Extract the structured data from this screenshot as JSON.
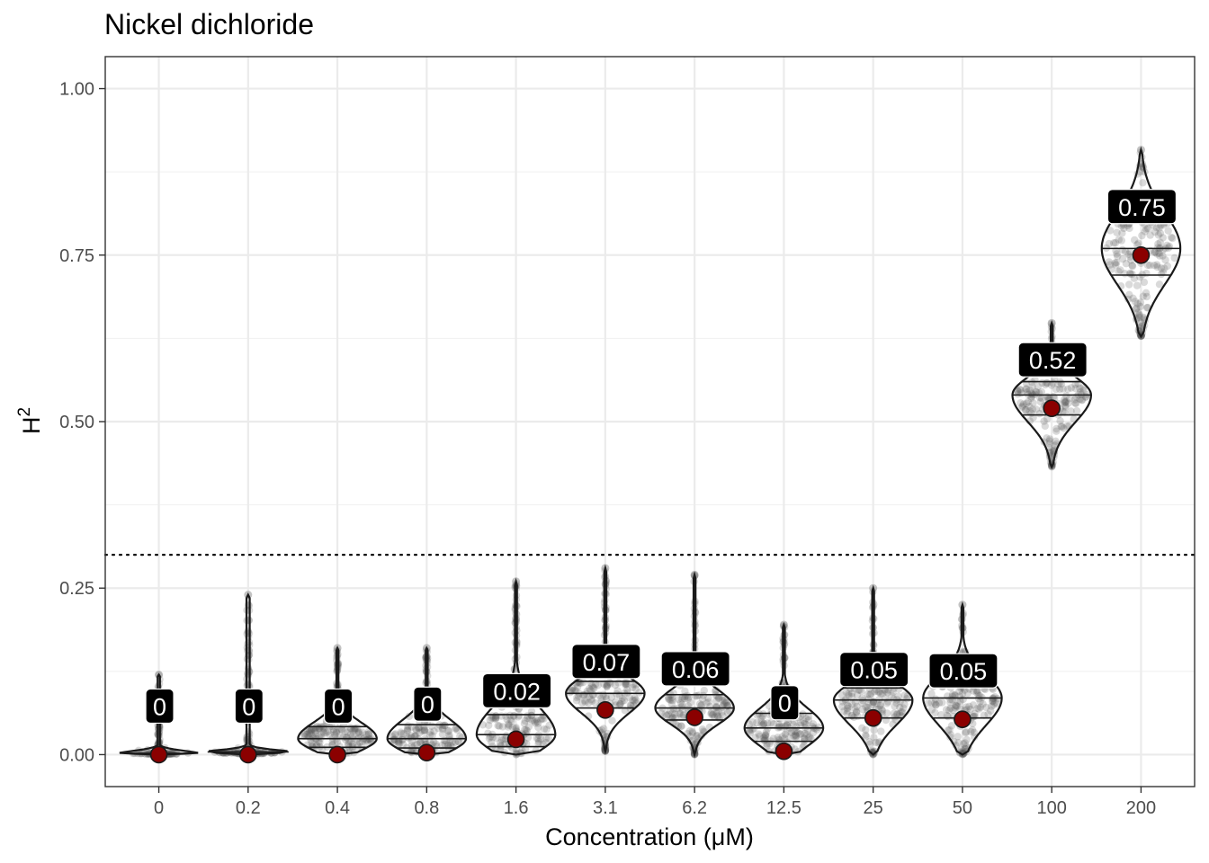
{
  "chart_data": {
    "type": "violin",
    "title": "Nickel dichloride",
    "xlabel": "Concentration (μM)",
    "ylabel": "H",
    "ylabel_superscript": "2",
    "categories": [
      "0",
      "0.2",
      "0.4",
      "0.8",
      "1.6",
      "3.1",
      "6.2",
      "12.5",
      "25",
      "50",
      "100",
      "200"
    ],
    "ylim": [
      -0.048,
      1.048
    ],
    "yticks": [
      0.0,
      0.25,
      0.5,
      0.75,
      1.0
    ],
    "ytick_labels": [
      "0.00",
      "0.25",
      "0.50",
      "0.75",
      "1.00"
    ],
    "threshold": 0.3,
    "grid": true,
    "estimates": [
      0.0,
      0.0,
      0.0,
      0.003,
      0.023,
      0.067,
      0.056,
      0.005,
      0.055,
      0.053,
      0.52,
      0.75
    ],
    "estimate_labels": [
      "0",
      "0",
      "0",
      "0",
      "0.02",
      "0.07",
      "0.06",
      "0",
      "0.05",
      "0.05",
      "0.52",
      "0.75"
    ],
    "distributions": [
      {
        "category": "0",
        "min": 0.0,
        "max": 0.12,
        "q25": 0.0,
        "median": 0.0,
        "q75": 0.002
      },
      {
        "category": "0.2",
        "min": 0.0,
        "max": 0.24,
        "q25": 0.0,
        "median": 0.0,
        "q75": 0.004
      },
      {
        "category": "0.4",
        "min": 0.0,
        "max": 0.16,
        "q25": 0.011,
        "median": 0.024,
        "q75": 0.042
      },
      {
        "category": "0.8",
        "min": 0.0,
        "max": 0.16,
        "q25": 0.01,
        "median": 0.024,
        "q75": 0.045
      },
      {
        "category": "1.6",
        "min": 0.0,
        "max": 0.26,
        "q25": 0.012,
        "median": 0.03,
        "q75": 0.06
      },
      {
        "category": "3.1",
        "min": 0.005,
        "max": 0.28,
        "q25": 0.07,
        "median": 0.092,
        "q75": 0.11
      },
      {
        "category": "6.2",
        "min": 0.0,
        "max": 0.27,
        "q25": 0.052,
        "median": 0.07,
        "q75": 0.09
      },
      {
        "category": "12.5",
        "min": 0.0,
        "max": 0.195,
        "q25": 0.02,
        "median": 0.04,
        "q75": 0.062
      },
      {
        "category": "25",
        "min": 0.0,
        "max": 0.25,
        "q25": 0.055,
        "median": 0.082,
        "q75": 0.1
      },
      {
        "category": "50",
        "min": 0.0,
        "max": 0.225,
        "q25": 0.055,
        "median": 0.085,
        "q75": 0.11
      },
      {
        "category": "100",
        "min": 0.432,
        "max": 0.648,
        "q25": 0.51,
        "median": 0.54,
        "q75": 0.56
      },
      {
        "category": "200",
        "min": 0.628,
        "max": 0.908,
        "q25": 0.72,
        "median": 0.76,
        "q75": 0.8
      }
    ],
    "colors": {
      "estimate_point": "#8b0000",
      "violin_outline": "#1a1a1a",
      "jitter_points": "#555555",
      "label_box": "#000000",
      "label_text": "#ffffff",
      "grid": "#ebebeb",
      "panel_border": "#333333",
      "threshold_line": "#000000"
    }
  }
}
